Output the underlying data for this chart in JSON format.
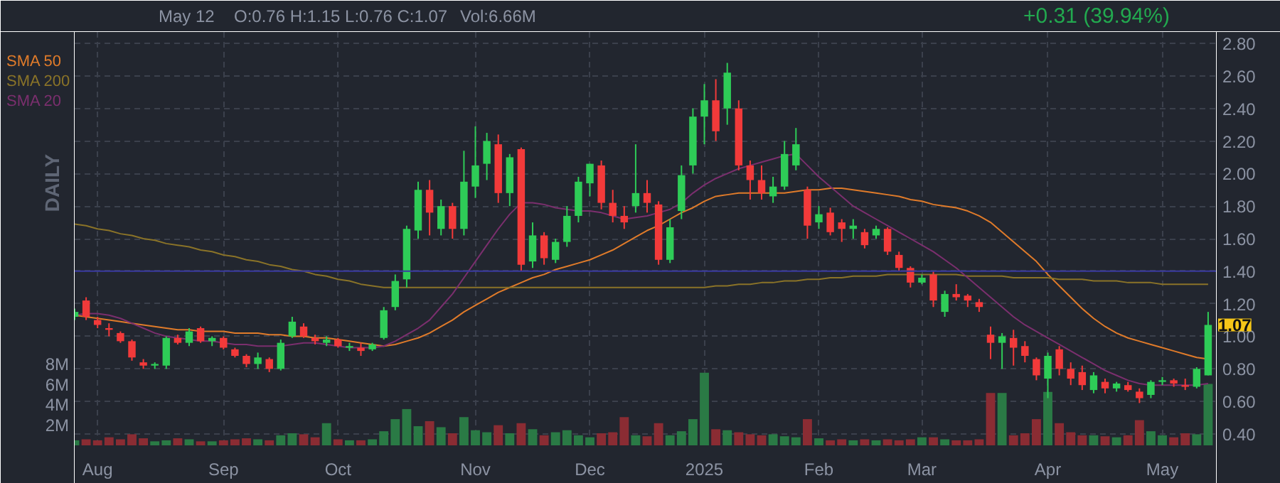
{
  "chart_data": {
    "type": "candlestick",
    "categories": [
      null,
      null,
      "Aug",
      null,
      null,
      null,
      null,
      null,
      null,
      null,
      null,
      null,
      null,
      "Sep",
      null,
      null,
      null,
      null,
      null,
      null,
      null,
      null,
      null,
      "Oct",
      null,
      null,
      null,
      null,
      null,
      null,
      null,
      null,
      null,
      null,
      null,
      "Nov",
      null,
      null,
      null,
      null,
      null,
      null,
      null,
      null,
      null,
      "Dec",
      null,
      null,
      null,
      null,
      null,
      null,
      null,
      null,
      null,
      "2025",
      null,
      null,
      null,
      null,
      null,
      null,
      null,
      null,
      null,
      "Feb",
      null,
      null,
      null,
      null,
      null,
      null,
      null,
      null,
      "Mar",
      null,
      null,
      null,
      null,
      null,
      null,
      null,
      null,
      null,
      null,
      "Apr",
      null,
      null,
      null,
      null,
      null,
      null,
      null,
      null,
      null,
      "May",
      null,
      null,
      null,
      null
    ],
    "ohlc": [
      [
        1.12,
        1.17,
        1.1,
        1.15
      ],
      [
        1.22,
        1.24,
        1.1,
        1.12
      ],
      [
        1.1,
        1.12,
        1.05,
        1.07
      ],
      [
        1.05,
        1.08,
        1.0,
        1.04
      ],
      [
        1.02,
        1.03,
        0.96,
        0.97
      ],
      [
        0.97,
        0.98,
        0.85,
        0.87
      ],
      [
        0.84,
        0.86,
        0.8,
        0.82
      ],
      [
        0.82,
        0.84,
        0.8,
        0.83
      ],
      [
        0.82,
        1.0,
        0.8,
        0.99
      ],
      [
        0.99,
        1.01,
        0.95,
        0.96
      ],
      [
        0.96,
        1.05,
        0.94,
        1.03
      ],
      [
        1.05,
        1.06,
        0.96,
        0.97
      ],
      [
        0.97,
        1.0,
        0.94,
        0.99
      ],
      [
        0.99,
        1.0,
        0.92,
        0.93
      ],
      [
        0.92,
        0.93,
        0.87,
        0.88
      ],
      [
        0.88,
        0.89,
        0.81,
        0.83
      ],
      [
        0.83,
        0.9,
        0.8,
        0.87
      ],
      [
        0.86,
        0.87,
        0.78,
        0.8
      ],
      [
        0.8,
        0.98,
        0.79,
        0.96
      ],
      [
        1.0,
        1.12,
        0.99,
        1.09
      ],
      [
        1.06,
        1.08,
        0.99,
        1.0
      ],
      [
        0.99,
        1.01,
        0.95,
        0.97
      ],
      [
        0.96,
        1.0,
        0.94,
        0.98
      ],
      [
        0.98,
        0.99,
        0.93,
        0.94
      ],
      [
        0.93,
        0.96,
        0.91,
        0.94
      ],
      [
        0.93,
        0.96,
        0.88,
        0.91
      ],
      [
        0.92,
        0.96,
        0.91,
        0.95
      ],
      [
        0.99,
        1.18,
        0.98,
        1.16
      ],
      [
        1.18,
        1.38,
        1.16,
        1.34
      ],
      [
        1.35,
        1.68,
        1.3,
        1.66
      ],
      [
        1.65,
        1.95,
        1.6,
        1.9
      ],
      [
        1.9,
        1.96,
        1.62,
        1.76
      ],
      [
        1.66,
        1.84,
        1.62,
        1.8
      ],
      [
        1.8,
        1.82,
        1.6,
        1.66
      ],
      [
        1.66,
        2.14,
        1.62,
        1.95
      ],
      [
        1.92,
        2.29,
        1.85,
        2.05
      ],
      [
        2.06,
        2.25,
        1.96,
        2.2
      ],
      [
        2.18,
        2.24,
        1.82,
        1.88
      ],
      [
        1.88,
        2.12,
        1.8,
        2.1
      ],
      [
        2.15,
        2.16,
        1.4,
        1.44
      ],
      [
        1.46,
        1.7,
        1.42,
        1.62
      ],
      [
        1.62,
        1.64,
        1.44,
        1.48
      ],
      [
        1.47,
        1.6,
        1.45,
        1.58
      ],
      [
        1.58,
        1.8,
        1.55,
        1.74
      ],
      [
        1.74,
        1.98,
        1.7,
        1.95
      ],
      [
        1.94,
        2.06,
        1.86,
        2.06
      ],
      [
        2.05,
        2.08,
        1.78,
        1.82
      ],
      [
        1.82,
        1.9,
        1.7,
        1.74
      ],
      [
        1.74,
        1.8,
        1.66,
        1.7
      ],
      [
        1.8,
        2.18,
        1.76,
        1.88
      ],
      [
        1.88,
        1.96,
        1.76,
        1.82
      ],
      [
        1.81,
        1.83,
        1.44,
        1.47
      ],
      [
        1.47,
        1.72,
        1.45,
        1.67
      ],
      [
        1.77,
        2.05,
        1.72,
        1.99
      ],
      [
        2.05,
        2.4,
        2.0,
        2.35
      ],
      [
        2.35,
        2.55,
        2.18,
        2.45
      ],
      [
        2.45,
        2.58,
        2.2,
        2.26
      ],
      [
        2.4,
        2.68,
        2.3,
        2.62
      ],
      [
        2.4,
        2.45,
        2.02,
        2.05
      ],
      [
        2.05,
        2.08,
        1.84,
        1.96
      ],
      [
        1.96,
        2.05,
        1.84,
        1.88
      ],
      [
        1.86,
        1.98,
        1.82,
        1.92
      ],
      [
        1.92,
        2.2,
        1.9,
        2.12
      ],
      [
        2.05,
        2.28,
        2.02,
        2.18
      ],
      [
        1.9,
        1.92,
        1.6,
        1.68
      ],
      [
        1.7,
        1.8,
        1.66,
        1.75
      ],
      [
        1.76,
        1.79,
        1.62,
        1.64
      ],
      [
        1.7,
        1.72,
        1.58,
        1.66
      ],
      [
        1.66,
        1.72,
        1.6,
        1.68
      ],
      [
        1.64,
        1.66,
        1.54,
        1.56
      ],
      [
        1.62,
        1.68,
        1.6,
        1.66
      ],
      [
        1.66,
        1.67,
        1.5,
        1.52
      ],
      [
        1.5,
        1.52,
        1.4,
        1.42
      ],
      [
        1.42,
        1.43,
        1.3,
        1.33
      ],
      [
        1.33,
        1.38,
        1.32,
        1.36
      ],
      [
        1.38,
        1.4,
        1.18,
        1.22
      ],
      [
        1.15,
        1.28,
        1.12,
        1.26
      ],
      [
        1.26,
        1.32,
        1.22,
        1.24
      ],
      [
        1.25,
        1.26,
        1.18,
        1.22
      ],
      [
        1.21,
        1.23,
        1.15,
        1.18
      ],
      [
        1.01,
        1.06,
        0.86,
        0.96
      ],
      [
        0.96,
        1.02,
        0.8,
        1.0
      ],
      [
        0.99,
        1.04,
        0.82,
        0.93
      ],
      [
        0.94,
        0.97,
        0.84,
        0.88
      ],
      [
        0.86,
        0.87,
        0.73,
        0.76
      ],
      [
        0.74,
        0.9,
        0.62,
        0.88
      ],
      [
        0.92,
        0.94,
        0.76,
        0.8
      ],
      [
        0.8,
        0.84,
        0.7,
        0.74
      ],
      [
        0.78,
        0.82,
        0.67,
        0.7
      ],
      [
        0.67,
        0.78,
        0.65,
        0.76
      ],
      [
        0.72,
        0.74,
        0.65,
        0.68
      ],
      [
        0.68,
        0.72,
        0.66,
        0.71
      ],
      [
        0.7,
        0.72,
        0.66,
        0.67
      ],
      [
        0.66,
        0.68,
        0.59,
        0.62
      ],
      [
        0.64,
        0.73,
        0.62,
        0.72
      ],
      [
        0.72,
        0.75,
        0.7,
        0.73
      ],
      [
        0.73,
        0.74,
        0.69,
        0.71
      ],
      [
        0.7,
        0.74,
        0.67,
        0.69
      ],
      [
        0.69,
        0.81,
        0.68,
        0.8
      ],
      [
        0.76,
        1.15,
        0.76,
        1.07
      ]
    ],
    "colors": [
      "#2ecc57",
      "#f23a3a",
      "#f23a3a",
      "#f23a3a",
      "#f23a3a",
      "#f23a3a",
      "#f23a3a",
      "#2ecc57",
      "#2ecc57",
      "#f23a3a",
      "#2ecc57",
      "#f23a3a",
      "#2ecc57",
      "#f23a3a",
      "#f23a3a",
      "#f23a3a",
      "#2ecc57",
      "#f23a3a",
      "#2ecc57",
      "#2ecc57",
      "#f23a3a",
      "#f23a3a",
      "#2ecc57",
      "#f23a3a",
      "#2ecc57",
      "#f23a3a",
      "#2ecc57",
      "#2ecc57",
      "#2ecc57",
      "#2ecc57",
      "#2ecc57",
      "#f23a3a",
      "#2ecc57",
      "#f23a3a",
      "#2ecc57",
      "#2ecc57",
      "#2ecc57",
      "#f23a3a",
      "#2ecc57",
      "#f23a3a",
      "#2ecc57",
      "#f23a3a",
      "#2ecc57",
      "#2ecc57",
      "#2ecc57",
      "#2ecc57",
      "#f23a3a",
      "#f23a3a",
      "#f23a3a",
      "#2ecc57",
      "#f23a3a",
      "#f23a3a",
      "#2ecc57",
      "#2ecc57",
      "#2ecc57",
      "#2ecc57",
      "#f23a3a",
      "#2ecc57",
      "#f23a3a",
      "#f23a3a",
      "#f23a3a",
      "#2ecc57",
      "#2ecc57",
      "#2ecc57",
      "#f23a3a",
      "#2ecc57",
      "#f23a3a",
      "#f23a3a",
      "#2ecc57",
      "#f23a3a",
      "#2ecc57",
      "#f23a3a",
      "#f23a3a",
      "#f23a3a",
      "#2ecc57",
      "#f23a3a",
      "#2ecc57",
      "#f23a3a",
      "#f23a3a",
      "#f23a3a",
      "#f23a3a",
      "#2ecc57",
      "#f23a3a",
      "#f23a3a",
      "#f23a3a",
      "#2ecc57",
      "#f23a3a",
      "#f23a3a",
      "#f23a3a",
      "#2ecc57",
      "#f23a3a",
      "#2ecc57",
      "#f23a3a",
      "#f23a3a",
      "#2ecc57",
      "#2ecc57",
      "#f23a3a",
      "#f23a3a",
      "#2ecc57",
      "#2ecc57"
    ],
    "series": [
      {
        "type": "bar",
        "axis": "y2",
        "values": [
          0.5,
          0.6,
          0.5,
          0.8,
          0.6,
          1.1,
          0.7,
          0.4,
          0.5,
          0.7,
          0.6,
          0.4,
          0.4,
          0.5,
          0.6,
          0.7,
          0.6,
          0.5,
          1.0,
          1.2,
          1.1,
          0.8,
          2.2,
          0.6,
          0.5,
          0.5,
          0.6,
          1.4,
          2.6,
          3.6,
          1.9,
          2.4,
          1.8,
          1.2,
          2.8,
          1.5,
          1.3,
          2.0,
          1.2,
          2.2,
          1.6,
          1.0,
          1.3,
          1.5,
          1.0,
          0.8,
          1.2,
          1.3,
          2.8,
          1.0,
          0.9,
          2.2,
          1.0,
          1.4,
          2.6,
          7.2,
          1.6,
          1.5,
          1.3,
          1.1,
          1.0,
          1.1,
          0.9,
          0.8,
          2.6,
          0.7,
          0.5,
          0.6,
          0.5,
          0.6,
          0.5,
          0.6,
          0.5,
          0.6,
          0.8,
          0.8,
          0.6,
          0.5,
          0.5,
          0.6,
          5.2,
          5.2,
          1.0,
          1.2,
          2.6,
          5.3,
          2.2,
          1.3,
          1.0,
          1.0,
          0.9,
          0.8,
          1.0,
          2.5,
          1.4,
          1.0,
          0.8,
          1.2,
          1.1,
          6.1
        ],
        "colors": [
          "#2a7a45",
          "#8a2c33",
          "#8a2c33",
          "#8a2c33",
          "#8a2c33",
          "#8a2c33",
          "#8a2c33",
          "#2a7a45",
          "#2a7a45",
          "#8a2c33",
          "#2a7a45",
          "#8a2c33",
          "#2a7a45",
          "#8a2c33",
          "#8a2c33",
          "#8a2c33",
          "#2a7a45",
          "#8a2c33",
          "#2a7a45",
          "#2a7a45",
          "#8a2c33",
          "#8a2c33",
          "#2a7a45",
          "#8a2c33",
          "#2a7a45",
          "#8a2c33",
          "#2a7a45",
          "#2a7a45",
          "#2a7a45",
          "#2a7a45",
          "#2a7a45",
          "#8a2c33",
          "#2a7a45",
          "#8a2c33",
          "#2a7a45",
          "#2a7a45",
          "#2a7a45",
          "#8a2c33",
          "#2a7a45",
          "#8a2c33",
          "#2a7a45",
          "#8a2c33",
          "#2a7a45",
          "#2a7a45",
          "#2a7a45",
          "#2a7a45",
          "#8a2c33",
          "#8a2c33",
          "#8a2c33",
          "#2a7a45",
          "#8a2c33",
          "#8a2c33",
          "#2a7a45",
          "#2a7a45",
          "#2a7a45",
          "#2a7a45",
          "#8a2c33",
          "#2a7a45",
          "#8a2c33",
          "#8a2c33",
          "#8a2c33",
          "#2a7a45",
          "#2a7a45",
          "#2a7a45",
          "#8a2c33",
          "#2a7a45",
          "#8a2c33",
          "#8a2c33",
          "#2a7a45",
          "#8a2c33",
          "#2a7a45",
          "#8a2c33",
          "#8a2c33",
          "#8a2c33",
          "#2a7a45",
          "#8a2c33",
          "#2a7a45",
          "#8a2c33",
          "#8a2c33",
          "#8a2c33",
          "#8a2c33",
          "#2a7a45",
          "#8a2c33",
          "#8a2c33",
          "#8a2c33",
          "#2a7a45",
          "#8a2c33",
          "#8a2c33",
          "#8a2c33",
          "#2a7a45",
          "#8a2c33",
          "#2a7a45",
          "#8a2c33",
          "#8a2c33",
          "#2a7a45",
          "#2a7a45",
          "#8a2c33",
          "#8a2c33",
          "#2a7a45",
          "#2a7a45"
        ]
      },
      {
        "type": "line",
        "name": "SMA 50",
        "color": "#e07b2a",
        "values": [
          1.13,
          1.12,
          1.11,
          1.1,
          1.09,
          1.08,
          1.07,
          1.06,
          1.05,
          1.04,
          1.04,
          1.03,
          1.03,
          1.03,
          1.02,
          1.02,
          1.02,
          1.01,
          1.01,
          1.0,
          1.0,
          0.99,
          0.99,
          0.98,
          0.97,
          0.96,
          0.95,
          0.94,
          0.95,
          0.97,
          0.99,
          1.02,
          1.06,
          1.1,
          1.15,
          1.19,
          1.23,
          1.27,
          1.3,
          1.33,
          1.36,
          1.38,
          1.41,
          1.43,
          1.45,
          1.47,
          1.5,
          1.53,
          1.57,
          1.61,
          1.65,
          1.68,
          1.72,
          1.76,
          1.79,
          1.83,
          1.86,
          1.87,
          1.88,
          1.88,
          1.88,
          1.88,
          1.88,
          1.89,
          1.9,
          1.9,
          1.91,
          1.91,
          1.9,
          1.89,
          1.88,
          1.87,
          1.86,
          1.84,
          1.83,
          1.81,
          1.8,
          1.79,
          1.77,
          1.74,
          1.7,
          1.64,
          1.58,
          1.52,
          1.46,
          1.38,
          1.31,
          1.24,
          1.17,
          1.11,
          1.06,
          1.02,
          0.99,
          0.97,
          0.95,
          0.93,
          0.91,
          0.89,
          0.87,
          0.86
        ]
      },
      {
        "type": "line",
        "name": "SMA 200",
        "color": "#8a7328",
        "values": [
          1.69,
          1.68,
          1.66,
          1.65,
          1.63,
          1.62,
          1.6,
          1.59,
          1.57,
          1.56,
          1.55,
          1.53,
          1.52,
          1.5,
          1.49,
          1.47,
          1.46,
          1.44,
          1.43,
          1.41,
          1.4,
          1.38,
          1.37,
          1.35,
          1.34,
          1.32,
          1.31,
          1.3,
          1.3,
          1.3,
          1.3,
          1.3,
          1.3,
          1.3,
          1.3,
          1.3,
          1.3,
          1.3,
          1.3,
          1.3,
          1.3,
          1.3,
          1.3,
          1.3,
          1.3,
          1.3,
          1.3,
          1.3,
          1.3,
          1.3,
          1.3,
          1.3,
          1.3,
          1.3,
          1.3,
          1.3,
          1.31,
          1.31,
          1.32,
          1.32,
          1.33,
          1.33,
          1.34,
          1.34,
          1.35,
          1.35,
          1.36,
          1.36,
          1.37,
          1.37,
          1.37,
          1.38,
          1.38,
          1.38,
          1.38,
          1.38,
          1.38,
          1.38,
          1.37,
          1.37,
          1.37,
          1.37,
          1.36,
          1.36,
          1.36,
          1.36,
          1.35,
          1.35,
          1.35,
          1.34,
          1.34,
          1.34,
          1.33,
          1.33,
          1.33,
          1.32,
          1.32,
          1.32,
          1.32,
          1.32
        ]
      },
      {
        "type": "line",
        "name": "SMA 20",
        "color": "#7b2f6e",
        "values": [
          1.13,
          1.14,
          1.14,
          1.13,
          1.11,
          1.08,
          1.05,
          1.02,
          1.0,
          0.99,
          0.98,
          0.97,
          0.97,
          0.96,
          0.95,
          0.95,
          0.94,
          0.94,
          0.94,
          0.95,
          0.96,
          0.96,
          0.95,
          0.94,
          0.93,
          0.93,
          0.93,
          0.94,
          0.97,
          1.01,
          1.05,
          1.1,
          1.18,
          1.26,
          1.36,
          1.46,
          1.56,
          1.66,
          1.75,
          1.82,
          1.82,
          1.81,
          1.79,
          1.78,
          1.77,
          1.77,
          1.76,
          1.74,
          1.72,
          1.73,
          1.74,
          1.76,
          1.78,
          1.82,
          1.88,
          1.93,
          1.97,
          2.0,
          2.03,
          2.05,
          2.07,
          2.09,
          2.11,
          2.12,
          2.05,
          1.98,
          1.92,
          1.86,
          1.8,
          1.76,
          1.72,
          1.68,
          1.64,
          1.6,
          1.56,
          1.52,
          1.47,
          1.42,
          1.36,
          1.3,
          1.24,
          1.18,
          1.12,
          1.07,
          1.03,
          0.99,
          0.95,
          0.91,
          0.87,
          0.83,
          0.79,
          0.76,
          0.73,
          0.71,
          0.7,
          0.7,
          0.7,
          0.7,
          0.7,
          0.71
        ]
      }
    ],
    "ylim": [
      0.33,
      2.87
    ],
    "yticks": [
      {
        "value": 0.4,
        "label": "0.40"
      },
      {
        "value": 0.6,
        "label": "0.60"
      },
      {
        "value": 0.8,
        "label": "0.80"
      },
      {
        "value": 1.0,
        "label": "1.00"
      },
      {
        "value": 1.2,
        "label": "1.20"
      },
      {
        "value": 1.4,
        "label": "1.40"
      },
      {
        "value": 1.6,
        "label": "1.60"
      },
      {
        "value": 1.8,
        "label": "1.80"
      },
      {
        "value": 2.0,
        "label": "2.00"
      },
      {
        "value": 2.2,
        "label": "2.20"
      },
      {
        "value": 2.4,
        "label": "2.40"
      },
      {
        "value": 2.6,
        "label": "2.60"
      },
      {
        "value": 2.8,
        "label": "2.80"
      }
    ],
    "y2lim": [
      0,
      41
    ],
    "y2ticks": [
      {
        "value": 2,
        "label": "2M"
      },
      {
        "value": 4,
        "label": "4M"
      },
      {
        "value": 6,
        "label": "6M"
      },
      {
        "value": 8,
        "label": "8M"
      }
    ],
    "ref_lines": [
      {
        "axis": "y",
        "value": 1.4,
        "color": "#3a3aa0"
      }
    ],
    "annotations": [
      "May 12",
      "O:0.76  H:1.15  L:0.76  C:1.07",
      "Vol:6.66M",
      "+0.31 (39.94%)",
      "DAILY",
      {
        "text": "1.07",
        "y": 1.07
      }
    ],
    "grid": true,
    "legend": "top left"
  }
}
